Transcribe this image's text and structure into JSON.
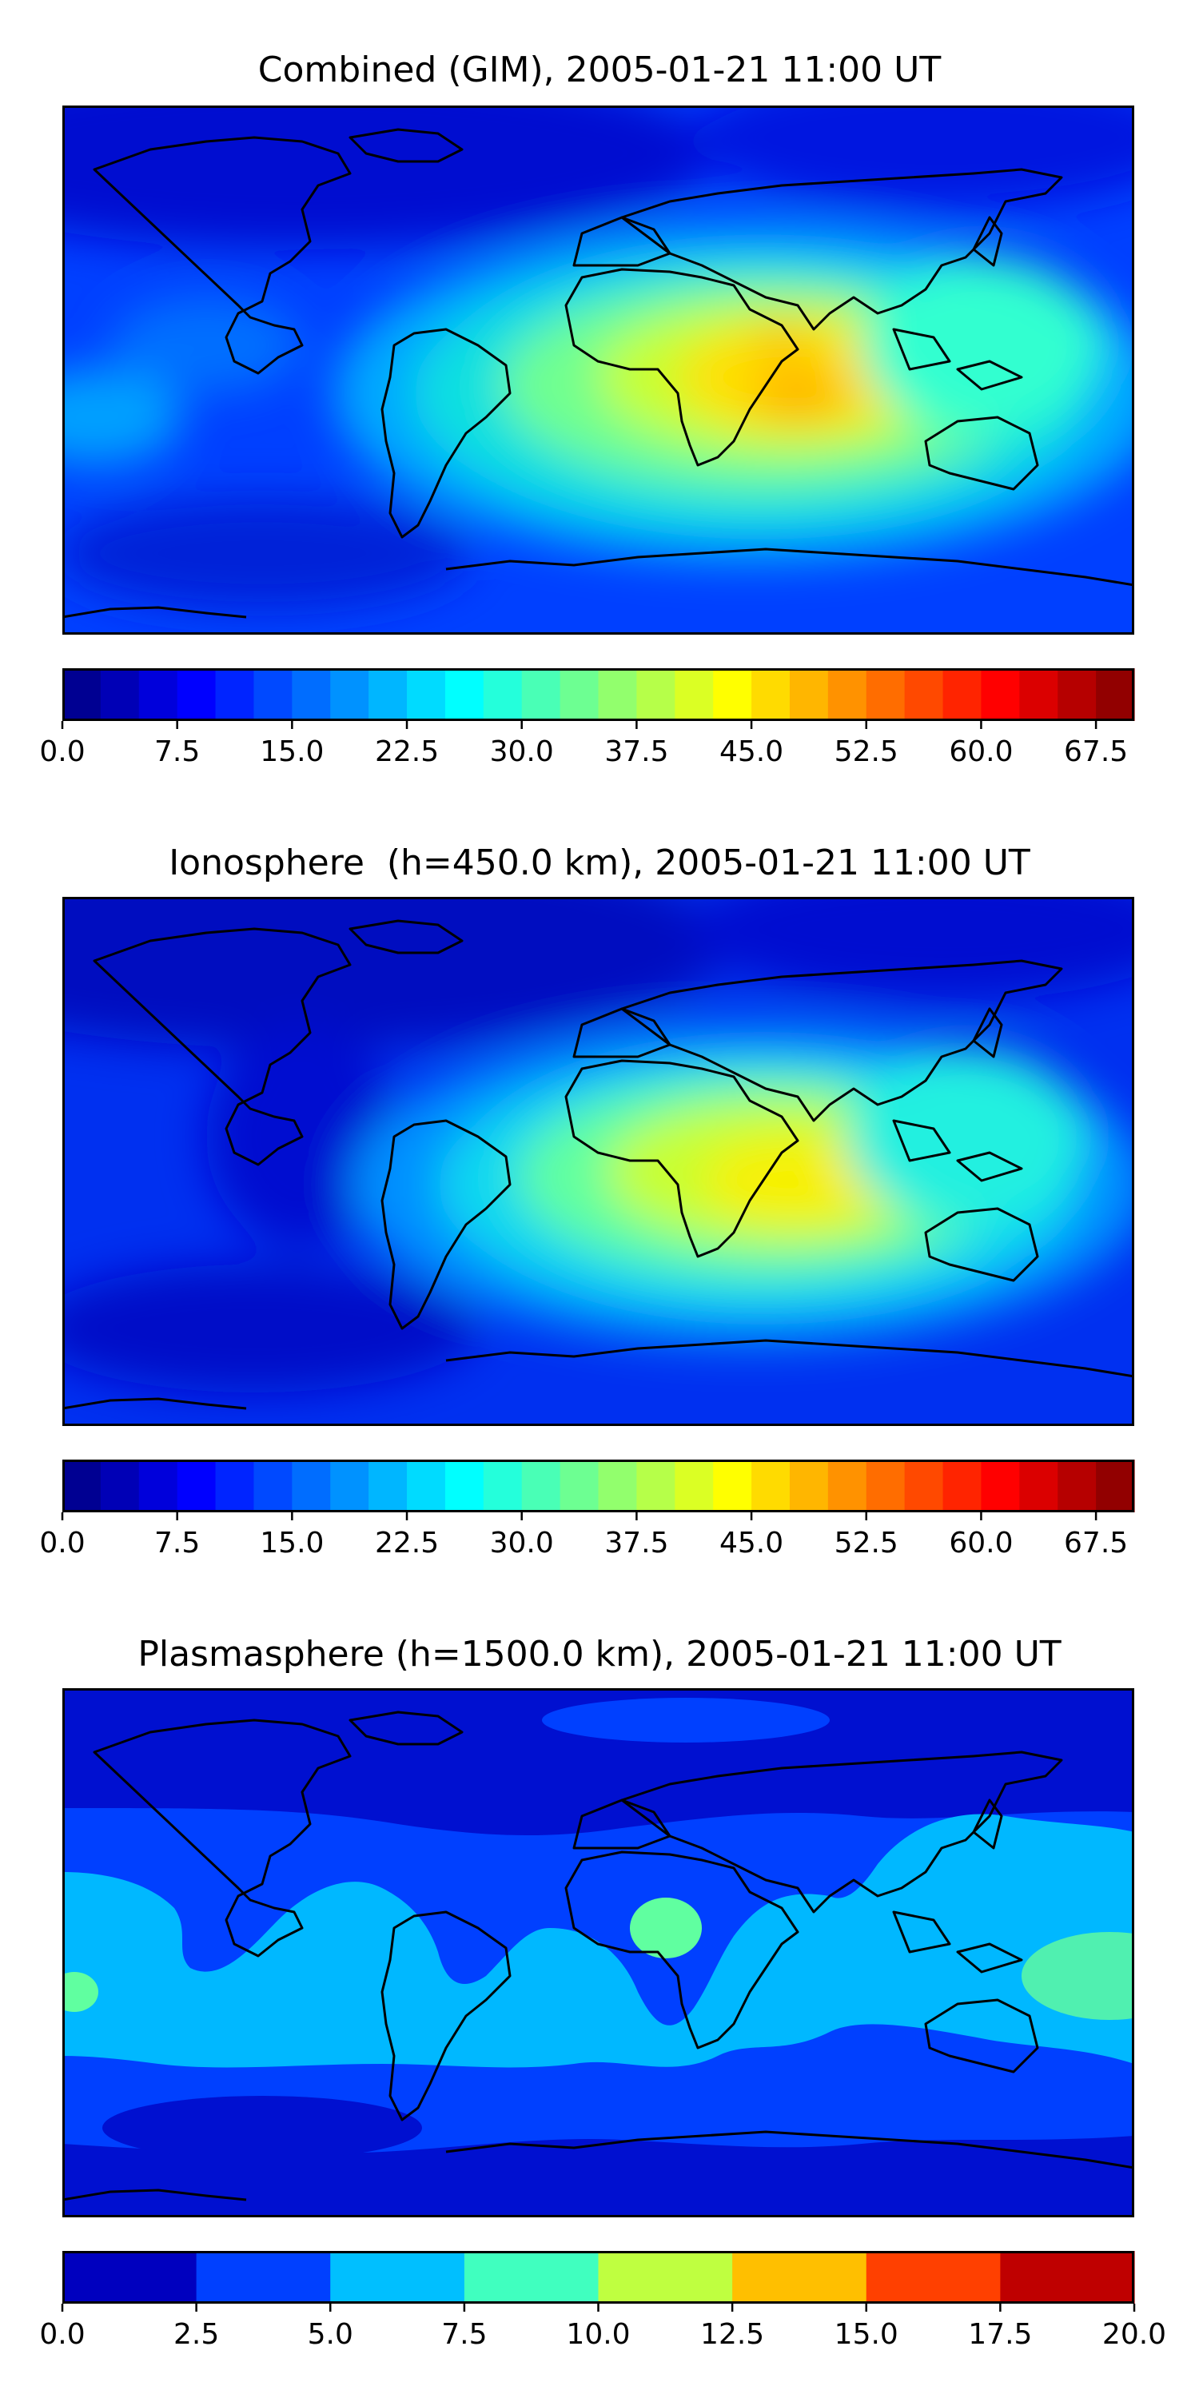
{
  "panels": [
    {
      "title": "Combined (GIM), 2005-01-21 11:00 UT",
      "map": {
        "type": "filled-contour",
        "projection": "equirectangular",
        "coastlines": true,
        "max_region": "equatorial Africa / Indian Ocean",
        "approx_peak_value": 50
      },
      "colorbar": {
        "orientation": "horizontal",
        "range": [
          0.0,
          70.0
        ],
        "step": 2.5,
        "ticks": [
          "0.0",
          "7.5",
          "15.0",
          "22.5",
          "30.0",
          "37.5",
          "45.0",
          "52.5",
          "60.0",
          "67.5"
        ],
        "tick_values": [
          0.0,
          7.5,
          15.0,
          22.5,
          30.0,
          37.5,
          45.0,
          52.5,
          60.0,
          67.5
        ]
      }
    },
    {
      "title": "Ionosphere  (h=450.0 km), 2005-01-21 11:00 UT",
      "map": {
        "type": "filled-contour",
        "projection": "equirectangular",
        "coastlines": true,
        "max_region": "equatorial Africa / Arabian Sea",
        "approx_peak_value": 47
      },
      "colorbar": {
        "orientation": "horizontal",
        "range": [
          0.0,
          70.0
        ],
        "step": 2.5,
        "ticks": [
          "0.0",
          "7.5",
          "15.0",
          "22.5",
          "30.0",
          "37.5",
          "45.0",
          "52.5",
          "60.0",
          "67.5"
        ],
        "tick_values": [
          0.0,
          7.5,
          15.0,
          22.5,
          30.0,
          37.5,
          45.0,
          52.5,
          60.0,
          67.5
        ]
      }
    },
    {
      "title": "Plasmasphere (h=1500.0 km), 2005-01-21 11:00 UT",
      "map": {
        "type": "filled-contour",
        "projection": "equirectangular",
        "coastlines": true,
        "max_region": "central Africa / tropical Pacific",
        "approx_peak_value": 9
      },
      "colorbar": {
        "orientation": "horizontal",
        "range": [
          0.0,
          20.0
        ],
        "step": 2.5,
        "ticks": [
          "0.0",
          "2.5",
          "5.0",
          "7.5",
          "10.0",
          "12.5",
          "15.0",
          "17.5",
          "20.0"
        ],
        "tick_values": [
          0.0,
          2.5,
          5.0,
          7.5,
          10.0,
          12.5,
          15.0,
          17.5,
          20.0
        ]
      }
    }
  ],
  "colors": {
    "colormap": "jet",
    "coastline": "#000000"
  }
}
